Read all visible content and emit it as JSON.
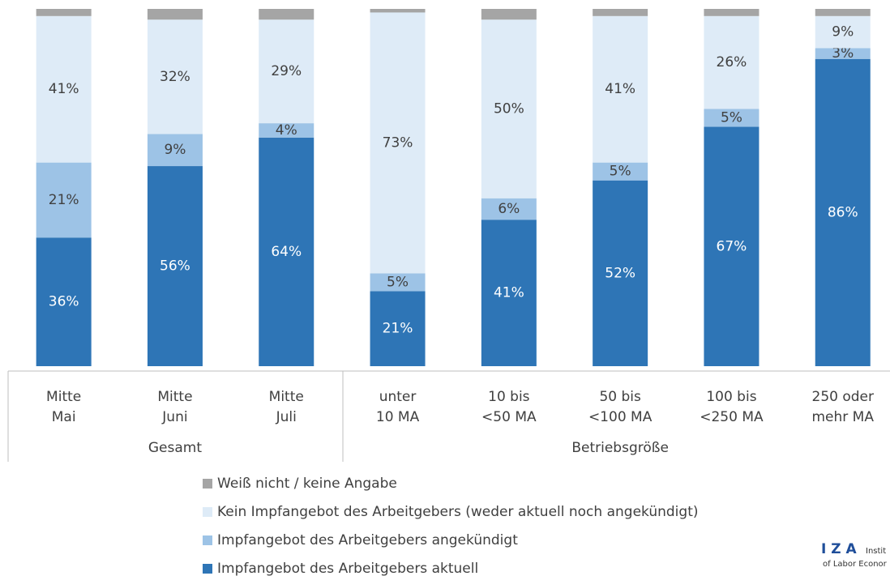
{
  "chart_data": {
    "type": "stacked_bar",
    "categories": [
      [
        "Mitte",
        "Mai"
      ],
      [
        "Mitte",
        "Juni"
      ],
      [
        "Mitte",
        "Juli"
      ],
      [
        "unter",
        "10 MA"
      ],
      [
        "10 bis",
        "<50 MA"
      ],
      [
        "50 bis",
        "<100 MA"
      ],
      [
        "100 bis",
        "<250 MA"
      ],
      [
        "250 oder",
        "mehr MA"
      ]
    ],
    "groups": [
      {
        "label": "Gesamt",
        "size": 3
      },
      {
        "label": "Betriebsgröße",
        "size": 5
      }
    ],
    "ylim": [
      0,
      100
    ],
    "series": [
      {
        "name": "Impfangebot des Arbeitgebers aktuell",
        "color": "#2e75b6",
        "label_color": "#ffffff",
        "values": [
          36,
          56,
          64,
          21,
          41,
          52,
          67,
          86
        ],
        "value_labels": [
          "36%",
          "56%",
          "64%",
          "21%",
          "41%",
          "52%",
          "67%",
          "86%"
        ]
      },
      {
        "name": "Impfangebot des Arbeitgebers angekündigt",
        "color": "#9dc3e6",
        "label_color": "#404040",
        "values": [
          21,
          9,
          4,
          5,
          6,
          5,
          5,
          3
        ],
        "value_labels": [
          "21%",
          "9%",
          "4%",
          "5%",
          "6%",
          "5%",
          "5%",
          "3%"
        ]
      },
      {
        "name": "Kein Impfangebot des Arbeitgebers (weder aktuell noch angekündigt)",
        "color": "#deebf7",
        "label_color": "#404040",
        "values": [
          41,
          32,
          29,
          73,
          50,
          41,
          26,
          9
        ],
        "value_labels": [
          "41%",
          "32%",
          "29%",
          "73%",
          "50%",
          "41%",
          "26%",
          "9%"
        ]
      },
      {
        "name": "Weiß nicht / keine Angabe",
        "color": "#a5a5a5",
        "values": [
          2,
          3,
          3,
          1,
          3,
          2,
          2,
          2
        ]
      }
    ]
  },
  "logo": {
    "mark": "I Z A",
    "line1": "Instit",
    "line2": "of Labor Econor"
  }
}
